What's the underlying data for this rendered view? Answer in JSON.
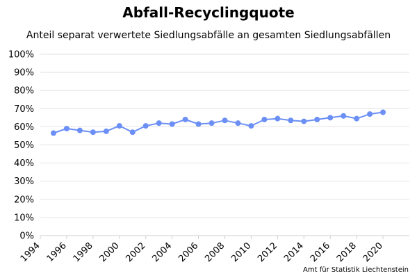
{
  "chart_data": {
    "type": "line",
    "title": "Abfall-Recyclingquote",
    "subtitle": "Anteil separat verwertete Siedlungsabfälle an gesamten Siedlungsabfällen",
    "xlabel": "",
    "ylabel": "",
    "xlim": [
      1994,
      2022
    ],
    "ylim": [
      0,
      100
    ],
    "x_ticks": [
      1994,
      1996,
      1998,
      2000,
      2002,
      2004,
      2006,
      2008,
      2010,
      2012,
      2014,
      2016,
      2018,
      2020
    ],
    "y_ticks": [
      0,
      10,
      20,
      30,
      40,
      50,
      60,
      70,
      80,
      90,
      100
    ],
    "y_tick_labels": [
      "0%",
      "10%",
      "20%",
      "30%",
      "40%",
      "50%",
      "60%",
      "70%",
      "80%",
      "90%",
      "100%"
    ],
    "grid": true,
    "color": "#6b8ff5",
    "series": [
      {
        "x": [
          1995,
          1996,
          1997,
          1998,
          1999,
          2000,
          2001,
          2002,
          2003,
          2004,
          2005,
          2006,
          2007,
          2008,
          2009,
          2010,
          2011,
          2012,
          2013,
          2014,
          2015,
          2016,
          2017,
          2018,
          2019,
          2020
        ],
        "values": [
          56.5,
          59,
          58,
          57,
          57.5,
          60.5,
          57,
          60.5,
          62,
          61.5,
          64,
          61.5,
          62,
          63.5,
          62,
          60.5,
          64,
          64.5,
          63.5,
          63,
          64,
          65,
          66,
          64.5,
          67,
          68
        ]
      }
    ]
  },
  "credit": "Amt für Statistik Liechtenstein"
}
